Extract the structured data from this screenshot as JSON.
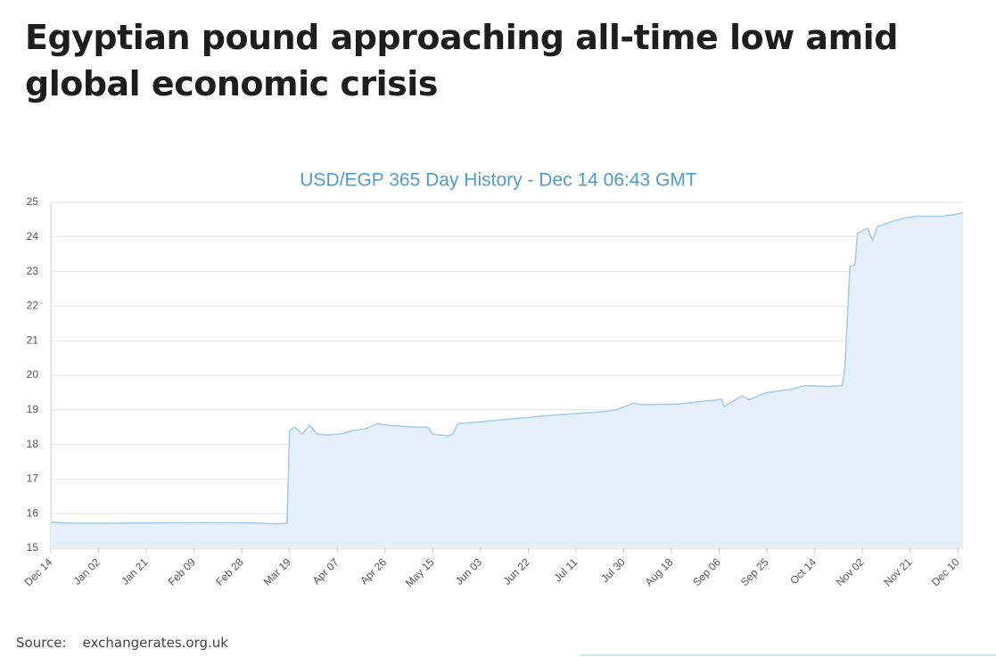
{
  "title": "Egyptian pound approaching all-time low amid global economic crisis",
  "source": {
    "label": "Source:",
    "text": "exchangerates.org.uk"
  },
  "chart_data": {
    "type": "area",
    "title": "USD/EGP 365 Day History - Dec 14 06:43 GMT",
    "color": "#a9cdea",
    "fill": "#e5f0fa",
    "grid": true,
    "x": [
      0,
      10,
      20,
      40,
      60,
      80,
      90,
      94,
      95,
      97,
      100,
      103,
      106,
      110,
      115,
      120,
      125,
      130,
      135,
      145,
      150,
      152,
      158,
      160,
      162,
      170,
      180,
      190,
      200,
      210,
      220,
      225,
      232,
      235,
      250,
      260,
      267,
      268,
      275,
      278,
      285,
      295,
      300,
      310,
      315,
      316,
      318,
      320,
      321,
      325,
      327,
      329,
      335,
      340,
      345,
      350,
      355,
      360,
      363
    ],
    "values": [
      15.75,
      15.72,
      15.72,
      15.73,
      15.74,
      15.73,
      15.7,
      15.72,
      18.4,
      18.5,
      18.3,
      18.55,
      18.3,
      18.28,
      18.3,
      18.4,
      18.45,
      18.6,
      18.55,
      18.5,
      18.5,
      18.3,
      18.25,
      18.3,
      18.6,
      18.65,
      18.72,
      18.78,
      18.85,
      18.9,
      18.95,
      19.0,
      19.2,
      19.15,
      19.17,
      19.25,
      19.3,
      19.1,
      19.4,
      19.3,
      19.5,
      19.6,
      19.7,
      19.68,
      19.7,
      20.2,
      23.15,
      23.2,
      24.1,
      24.25,
      23.9,
      24.3,
      24.45,
      24.55,
      24.6,
      24.6,
      24.6,
      24.65,
      24.7
    ],
    "xlim": [
      0,
      363
    ],
    "xticks": [
      {
        "value": 0,
        "label": "Dec 14"
      },
      {
        "value": 19,
        "label": "Jan 02"
      },
      {
        "value": 38,
        "label": "Jan 21"
      },
      {
        "value": 57,
        "label": "Feb 09"
      },
      {
        "value": 76,
        "label": "Feb 28"
      },
      {
        "value": 95,
        "label": "Mar 19"
      },
      {
        "value": 114,
        "label": "Apr 07"
      },
      {
        "value": 133,
        "label": "Apr 26"
      },
      {
        "value": 152,
        "label": "May 15"
      },
      {
        "value": 171,
        "label": "Jun 03"
      },
      {
        "value": 190,
        "label": "Jun 22"
      },
      {
        "value": 209,
        "label": "Jul 11"
      },
      {
        "value": 228,
        "label": "Jul 30"
      },
      {
        "value": 247,
        "label": "Aug 18"
      },
      {
        "value": 266,
        "label": "Sep 06"
      },
      {
        "value": 285,
        "label": "Sep 25"
      },
      {
        "value": 304,
        "label": "Oct 14"
      },
      {
        "value": 323,
        "label": "Nov 02"
      },
      {
        "value": 342,
        "label": "Nov 21"
      },
      {
        "value": 361,
        "label": "Dec 10"
      }
    ],
    "ylim": [
      15,
      25
    ],
    "yticks": [
      15,
      16,
      17,
      18,
      19,
      20,
      21,
      22,
      23,
      24,
      25
    ]
  }
}
